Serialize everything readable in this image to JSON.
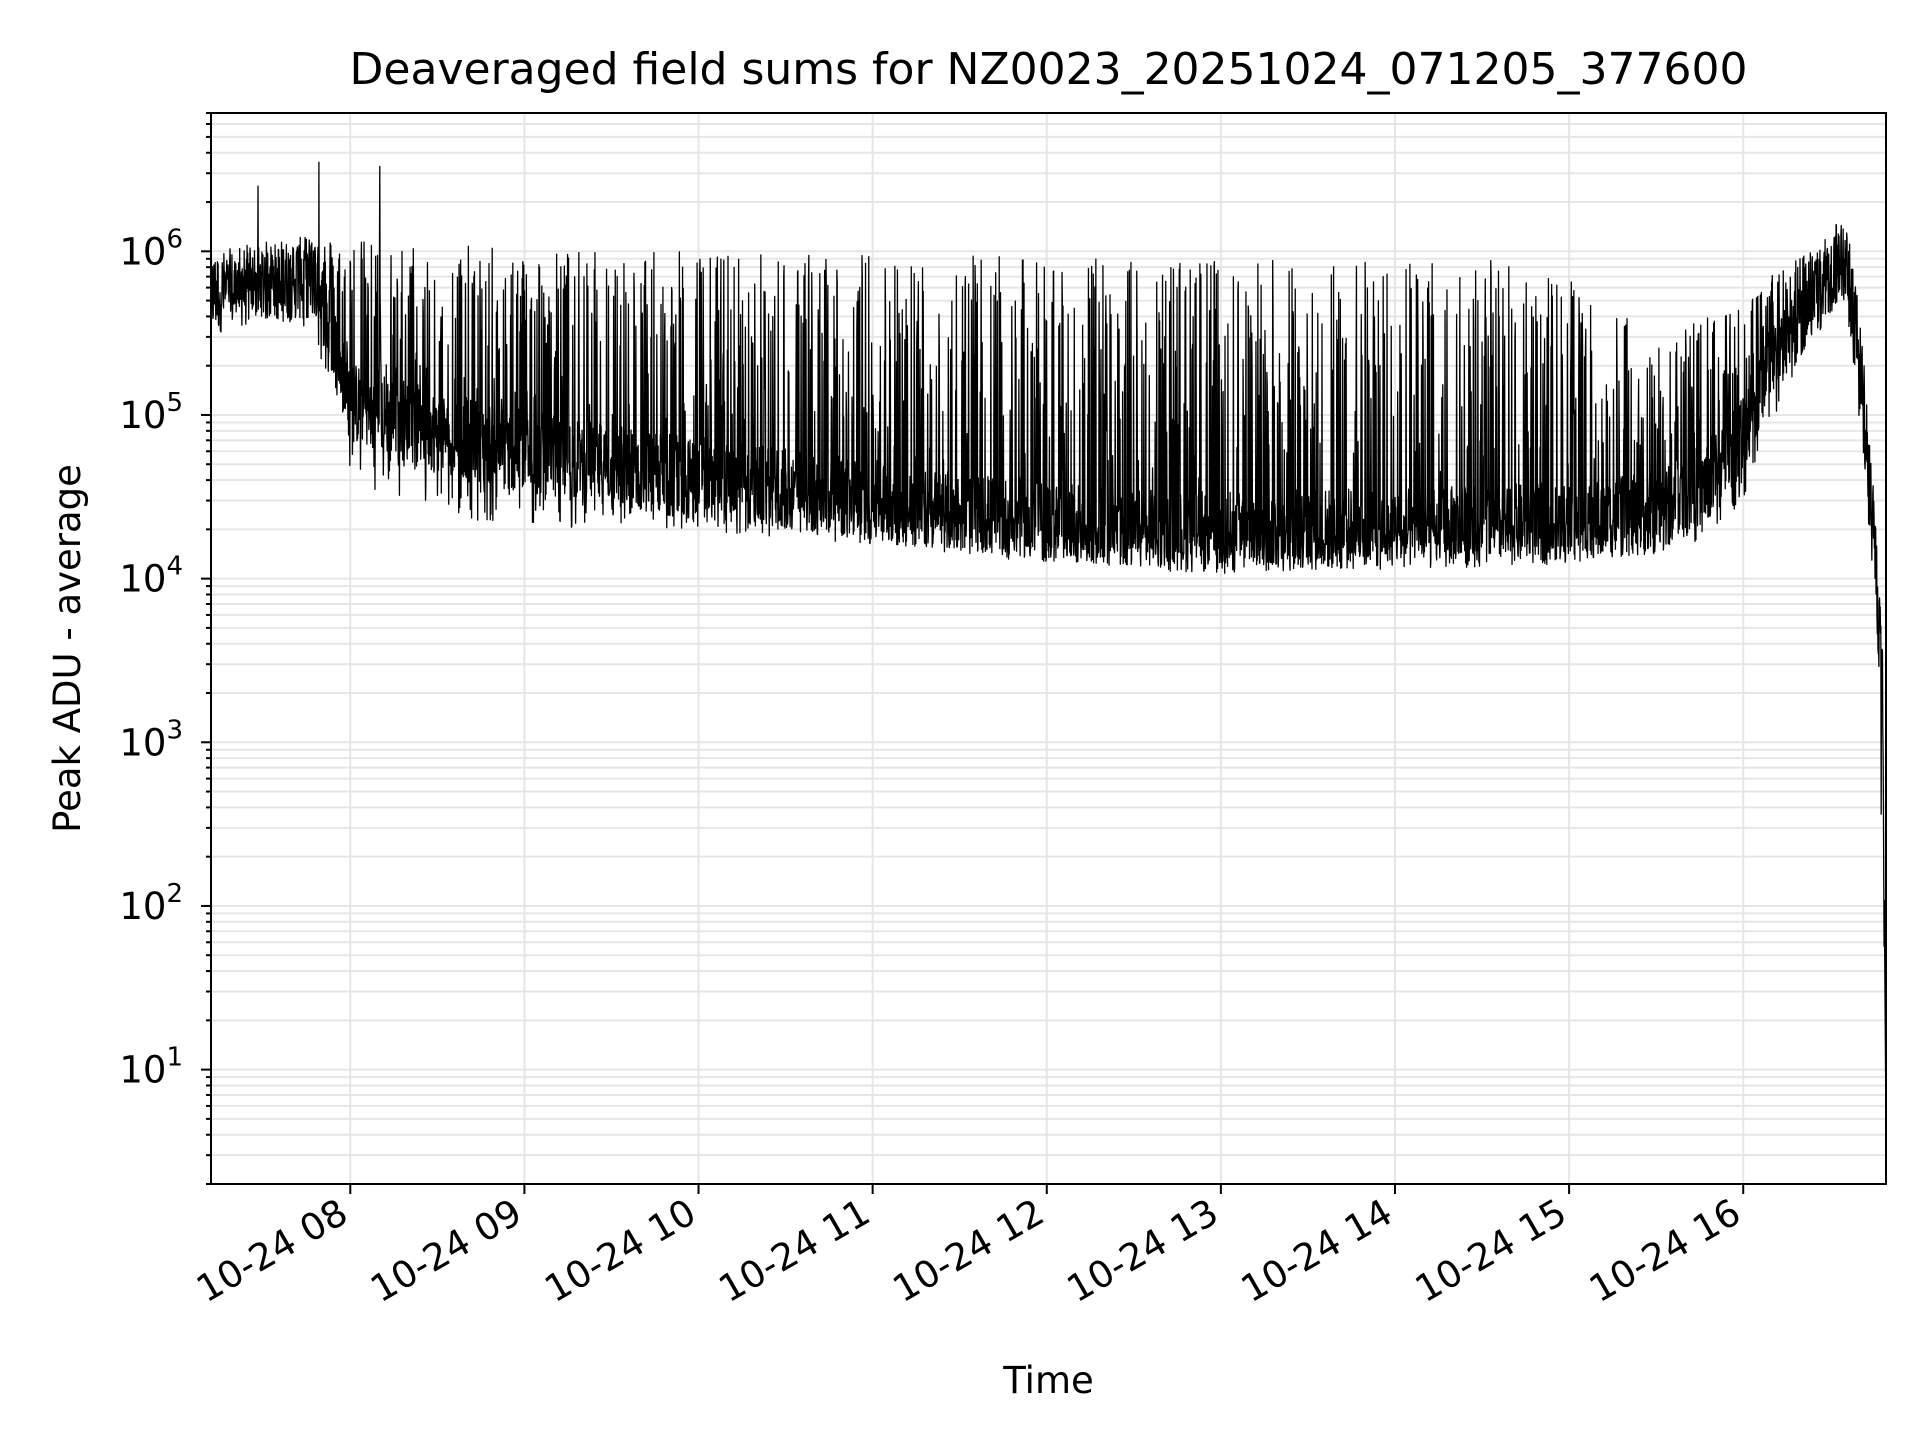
{
  "chart_data": {
    "type": "line",
    "title": "Deaveraged field sums for NZ0023_20251024_071205_377600",
    "xlabel": "Time",
    "ylabel": "Peak ADU - average",
    "yscale": "log",
    "ylim": [
      2,
      7000000
    ],
    "xlim_hours": [
      7.2,
      16.82
    ],
    "x_ticks": [
      {
        "hour": 8,
        "label": "10-24 08"
      },
      {
        "hour": 9,
        "label": "10-24 09"
      },
      {
        "hour": 10,
        "label": "10-24 10"
      },
      {
        "hour": 11,
        "label": "10-24 11"
      },
      {
        "hour": 12,
        "label": "10-24 12"
      },
      {
        "hour": 13,
        "label": "10-24 13"
      },
      {
        "hour": 14,
        "label": "10-24 14"
      },
      {
        "hour": 15,
        "label": "10-24 15"
      },
      {
        "hour": 16,
        "label": "10-24 16"
      }
    ],
    "y_ticks": [
      {
        "exp": 1,
        "base": "10",
        "sup": "1"
      },
      {
        "exp": 2,
        "base": "10",
        "sup": "2"
      },
      {
        "exp": 3,
        "base": "10",
        "sup": "3"
      },
      {
        "exp": 4,
        "base": "10",
        "sup": "4"
      },
      {
        "exp": 5,
        "base": "10",
        "sup": "5"
      },
      {
        "exp": 6,
        "base": "10",
        "sup": "6"
      }
    ],
    "grid": "both-major-and-minor",
    "line_color": "#000000",
    "grid_color": "#e6e6e6",
    "series": [
      {
        "name": "deaveraged-field-sum",
        "envelope": {
          "hours": [
            7.2,
            7.5,
            7.8,
            8.0,
            8.5,
            9.0,
            9.5,
            10.0,
            10.5,
            11.0,
            11.5,
            12.0,
            12.5,
            13.0,
            13.5,
            14.0,
            14.5,
            15.0,
            15.5,
            15.8,
            16.0,
            16.2,
            16.4,
            16.55,
            16.6,
            16.65,
            16.7,
            16.75,
            16.8,
            16.82
          ],
          "base": [
            550000,
            650000,
            700000,
            120000,
            80000,
            60000,
            50000,
            40000,
            35000,
            30000,
            25000,
            22000,
            20000,
            19000,
            20000,
            20000,
            21000,
            22000,
            25000,
            40000,
            80000,
            250000,
            500000,
            900000,
            700000,
            300000,
            80000,
            20000,
            2000,
            4
          ],
          "low": [
            450000,
            400000,
            300000,
            40000,
            25000,
            20000,
            20000,
            19000,
            18000,
            16000,
            15000,
            13000,
            12000,
            12000,
            12000,
            13000,
            13000,
            13000,
            14000,
            18000,
            30000,
            100000,
            300000,
            500000,
            400000,
            150000,
            30000,
            8000,
            200,
            4
          ],
          "high": [
            750000,
            1000000,
            1200000,
            1200000,
            1100000,
            1050000,
            1000000,
            1000000,
            1000000,
            1000000,
            950000,
            900000,
            900000,
            900000,
            900000,
            900000,
            900000,
            700000,
            300000,
            400000,
            500000,
            800000,
            1000000,
            1800000,
            1400000,
            600000,
            200000,
            30000,
            5000,
            4
          ]
        },
        "spikes": [
          {
            "hour": 7.47,
            "value": 2500000
          },
          {
            "hour": 7.82,
            "value": 3500000
          },
          {
            "hour": 8.17,
            "value": 3300000
          }
        ]
      }
    ]
  }
}
